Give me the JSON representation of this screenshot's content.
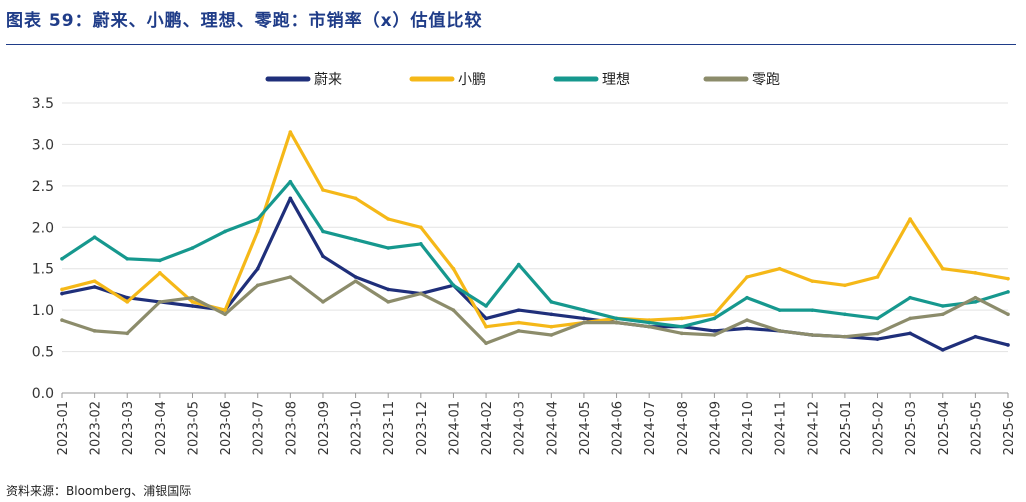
{
  "title": "图表 59：蔚来、小鹏、理想、零跑：市销率（x）估值比较",
  "source": "资料来源：Bloomberg、浦银国际",
  "chart_data": {
    "type": "line",
    "title": "图表 59：蔚来、小鹏、理想、零跑：市销率（x）估值比较",
    "xlabel": "",
    "ylabel": "",
    "ylim": [
      0,
      3.5
    ],
    "yticks": [
      "0.0",
      "0.5",
      "1.0",
      "1.5",
      "2.0",
      "2.5",
      "3.0",
      "3.5"
    ],
    "x": [
      "2023-01",
      "2023-02",
      "2023-03",
      "2023-04",
      "2023-05",
      "2023-06",
      "2023-07",
      "2023-08",
      "2023-09",
      "2023-10",
      "2023-11",
      "2023-12",
      "2024-01",
      "2024-02",
      "2024-03",
      "2024-04",
      "2024-05",
      "2024-06",
      "2024-07",
      "2024-08",
      "2024-09",
      "2024-10",
      "2024-11",
      "2024-12",
      "2025-01",
      "2025-02",
      "2025-03",
      "2025-04",
      "2025-05",
      "2025-06"
    ],
    "legend_position": "top",
    "series": [
      {
        "name": "蔚来",
        "color": "#1f2f7a",
        "values": [
          1.2,
          1.28,
          1.15,
          1.1,
          1.05,
          1.0,
          1.5,
          2.35,
          1.65,
          1.4,
          1.25,
          1.2,
          1.3,
          0.9,
          1.0,
          0.95,
          0.9,
          0.85,
          0.8,
          0.8,
          0.75,
          0.78,
          0.75,
          0.7,
          0.68,
          0.65,
          0.72,
          0.52,
          0.68,
          0.58
        ]
      },
      {
        "name": "小鹏",
        "color": "#f5b818",
        "values": [
          1.25,
          1.35,
          1.1,
          1.45,
          1.1,
          1.0,
          1.95,
          3.15,
          2.45,
          2.35,
          2.1,
          2.0,
          1.5,
          0.8,
          0.85,
          0.8,
          0.85,
          0.9,
          0.88,
          0.9,
          0.95,
          1.4,
          1.5,
          1.35,
          1.3,
          1.4,
          2.1,
          1.5,
          1.45,
          1.38
        ]
      },
      {
        "name": "理想",
        "color": "#16988e",
        "values": [
          1.62,
          1.88,
          1.62,
          1.6,
          1.75,
          1.95,
          2.1,
          2.55,
          1.95,
          1.85,
          1.75,
          1.8,
          1.3,
          1.05,
          1.55,
          1.1,
          1.0,
          0.9,
          0.85,
          0.8,
          0.9,
          1.15,
          1.0,
          1.0,
          0.95,
          0.9,
          1.15,
          1.05,
          1.1,
          1.22
        ]
      },
      {
        "name": "零跑",
        "color": "#8c8c6b",
        "values": [
          0.88,
          0.75,
          0.72,
          1.1,
          1.15,
          0.95,
          1.3,
          1.4,
          1.1,
          1.35,
          1.1,
          1.2,
          1.0,
          0.6,
          0.75,
          0.7,
          0.85,
          0.85,
          0.8,
          0.72,
          0.7,
          0.88,
          0.75,
          0.7,
          0.68,
          0.72,
          0.9,
          0.95,
          1.15,
          0.95
        ]
      }
    ]
  }
}
